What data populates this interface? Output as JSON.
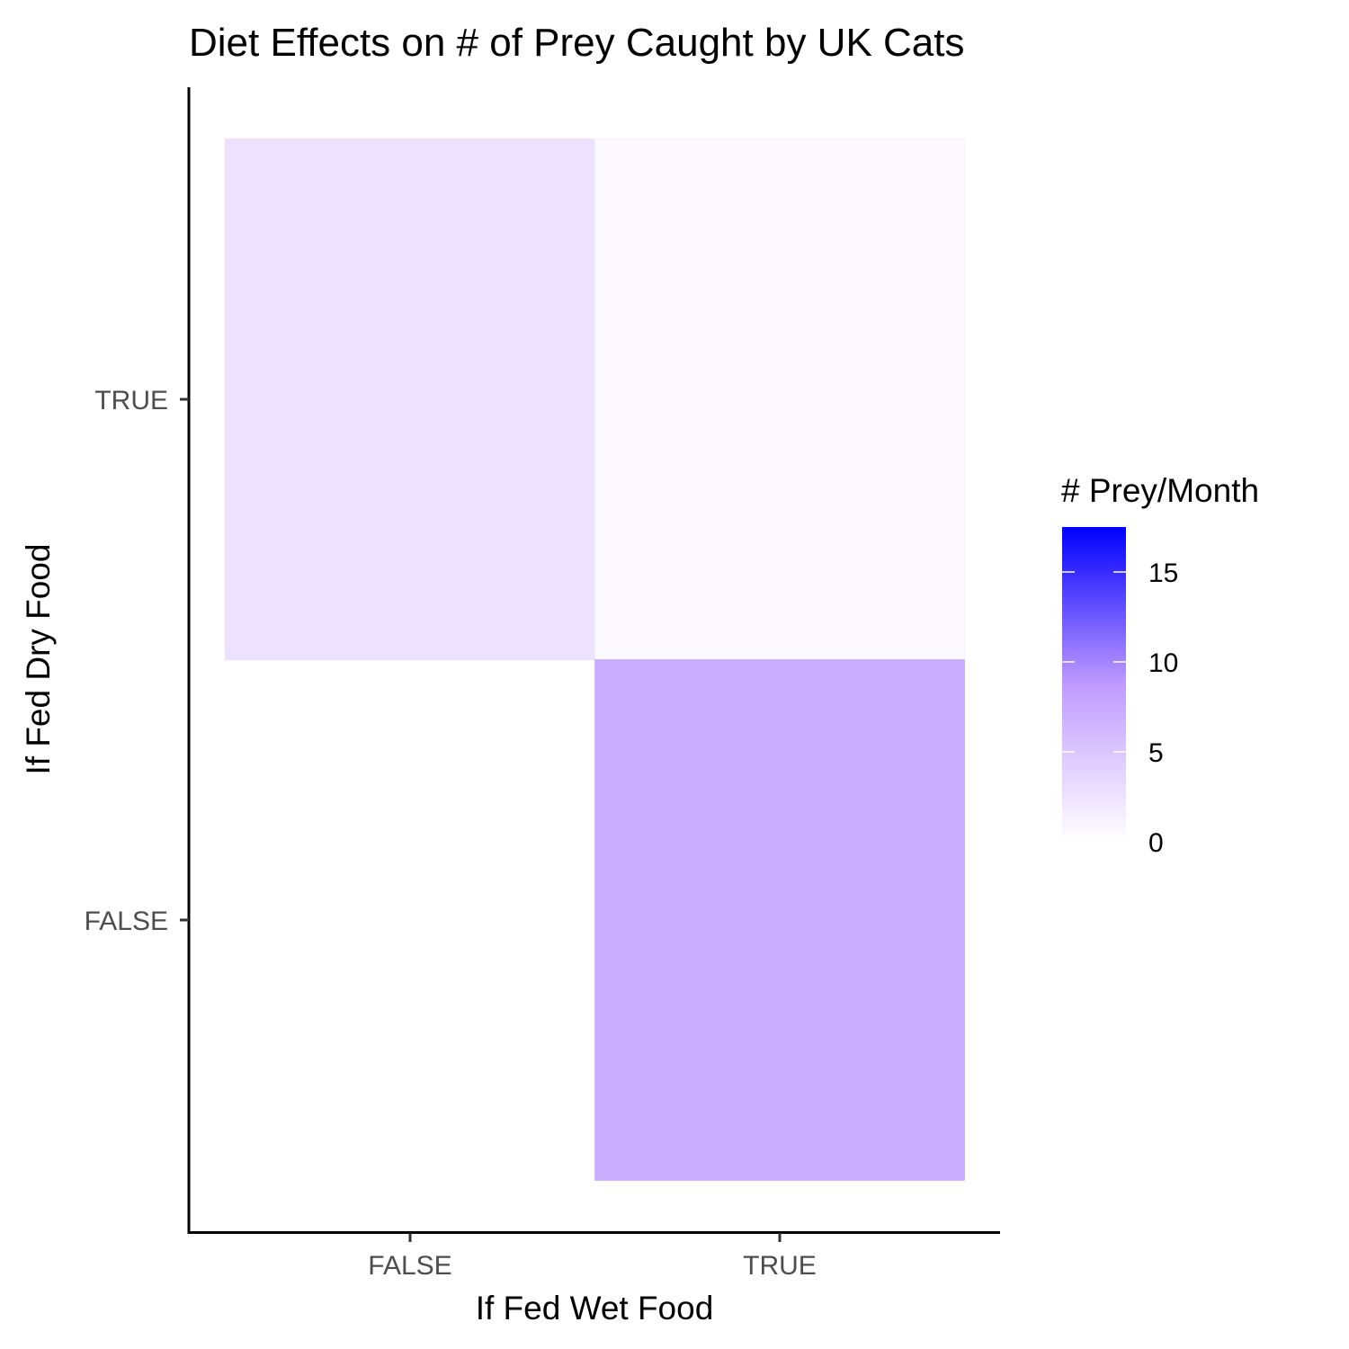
{
  "chart_data": {
    "type": "heatmap",
    "title": "Diet Effects on # of Prey Caught by UK Cats",
    "xlabel": "If Fed Wet Food",
    "ylabel": "If Fed Dry Food",
    "x_categories": [
      "FALSE",
      "TRUE"
    ],
    "y_categories": [
      "FALSE",
      "TRUE"
    ],
    "cells": [
      {
        "x": "FALSE",
        "y": "TRUE",
        "value": 2.6
      },
      {
        "x": "TRUE",
        "y": "TRUE",
        "value": 0.5
      },
      {
        "x": "TRUE",
        "y": "FALSE",
        "value": 7.2
      }
    ],
    "legend": {
      "title": "# Prey/Month",
      "ticks": [
        0,
        5,
        10,
        15
      ],
      "tick_labels": [
        "0",
        "5",
        "10",
        "15"
      ],
      "range": [
        0,
        17.5
      ],
      "low_color": "#ffffff",
      "mid_color": "#bf9bff",
      "high_color": "#0000ff",
      "placement": "right"
    },
    "grid": false
  }
}
